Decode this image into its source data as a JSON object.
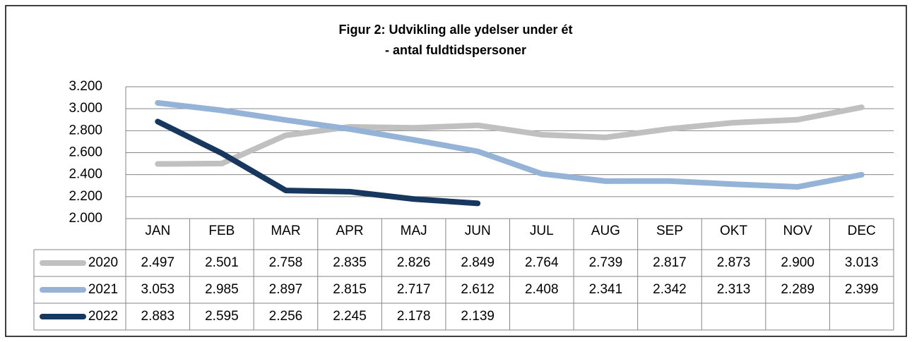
{
  "chart_data": {
    "type": "line",
    "title": "Figur 2: Udvikling alle ydelser under ét",
    "subtitle": "- antal fuldtidspersoner",
    "categories": [
      "JAN",
      "FEB",
      "MAR",
      "APR",
      "MAJ",
      "JUN",
      "JUL",
      "AUG",
      "SEP",
      "OKT",
      "NOV",
      "DEC"
    ],
    "series": [
      {
        "name": "2020",
        "color": "#c0c0c0",
        "values": [
          2497,
          2501,
          2758,
          2835,
          2826,
          2849,
          2764,
          2739,
          2817,
          2873,
          2900,
          3013
        ],
        "value_labels": [
          "2.497",
          "2.501",
          "2.758",
          "2.835",
          "2.826",
          "2.849",
          "2.764",
          "2.739",
          "2.817",
          "2.873",
          "2.900",
          "3.013"
        ]
      },
      {
        "name": "2021",
        "color": "#95b3d7",
        "values": [
          3053,
          2985,
          2897,
          2815,
          2717,
          2612,
          2408,
          2341,
          2342,
          2313,
          2289,
          2399
        ],
        "value_labels": [
          "3.053",
          "2.985",
          "2.897",
          "2.815",
          "2.717",
          "2.612",
          "2.408",
          "2.341",
          "2.342",
          "2.313",
          "2.289",
          "2.399"
        ]
      },
      {
        "name": "2022",
        "color": "#17375e",
        "values": [
          2883,
          2595,
          2256,
          2245,
          2178,
          2139,
          null,
          null,
          null,
          null,
          null,
          null
        ],
        "value_labels": [
          "2.883",
          "2.595",
          "2.256",
          "2.245",
          "2.178",
          "2.139",
          null,
          null,
          null,
          null,
          null,
          null
        ]
      }
    ],
    "ylim": [
      2000,
      3200
    ],
    "yticks": [
      {
        "value": 2000,
        "label": "2.000"
      },
      {
        "value": 2200,
        "label": "2.200"
      },
      {
        "value": 2400,
        "label": "2.400"
      },
      {
        "value": 2600,
        "label": "2.600"
      },
      {
        "value": 2800,
        "label": "2.800"
      },
      {
        "value": 3000,
        "label": "3.000"
      },
      {
        "value": 3200,
        "label": "3.200"
      }
    ],
    "grid": true
  }
}
